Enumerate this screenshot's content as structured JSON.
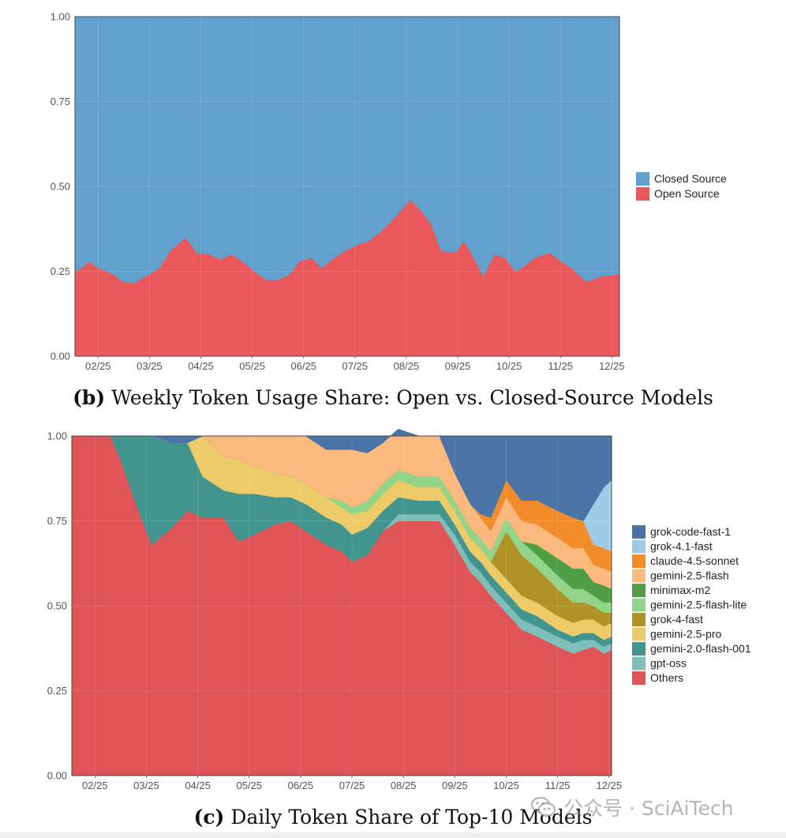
{
  "chart_data": [
    {
      "id": "b",
      "type": "area",
      "stacked": true,
      "title": "Weekly Token Usage Share: Open vs. Closed-Source Models",
      "caption_label": "(b)",
      "xlabel": "",
      "ylabel": "",
      "ylim": [
        0,
        1
      ],
      "y_ticks": [
        "0.00",
        "0.25",
        "0.50",
        "0.75",
        "1.00"
      ],
      "x_ticks": [
        "02/25",
        "03/25",
        "04/25",
        "05/25",
        "06/25",
        "07/25",
        "08/25",
        "09/25",
        "10/25",
        "11/25",
        "12/25"
      ],
      "x_tick_positions": [
        1.5,
        2.5,
        3.5,
        4.5,
        5.5,
        6.5,
        7.5,
        8.5,
        9.5,
        10.5,
        11.5
      ],
      "xlim": [
        1.05,
        11.65
      ],
      "x": [
        1.05,
        1.18,
        1.32,
        1.5,
        1.75,
        1.98,
        2.2,
        2.42,
        2.7,
        2.9,
        3.2,
        3.42,
        3.66,
        3.88,
        4.1,
        4.35,
        4.58,
        4.78,
        5.0,
        5.22,
        5.42,
        5.65,
        5.85,
        6.1,
        6.3,
        6.58,
        6.78,
        7.02,
        7.28,
        7.58,
        7.78,
        7.98,
        8.18,
        8.46,
        8.62,
        8.78,
        9.0,
        9.21,
        9.42,
        9.62,
        9.8,
        10.0,
        10.3,
        10.5,
        10.72,
        11.0,
        11.3,
        11.55,
        11.65
      ],
      "series": [
        {
          "name": "Open Source",
          "color": "#E9585B",
          "values": [
            0.25,
            0.26,
            0.28,
            0.26,
            0.245,
            0.22,
            0.215,
            0.235,
            0.26,
            0.31,
            0.35,
            0.305,
            0.3,
            0.285,
            0.3,
            0.275,
            0.245,
            0.225,
            0.225,
            0.24,
            0.28,
            0.29,
            0.26,
            0.29,
            0.31,
            0.33,
            0.34,
            0.37,
            0.41,
            0.46,
            0.43,
            0.39,
            0.31,
            0.305,
            0.34,
            0.3,
            0.235,
            0.3,
            0.29,
            0.25,
            0.265,
            0.29,
            0.305,
            0.28,
            0.26,
            0.22,
            0.235,
            0.24,
            0.24
          ]
        },
        {
          "name": "Closed Source",
          "color": "#62A1CD",
          "values": "remainder to 1.00"
        }
      ],
      "legend": {
        "position": "right",
        "entries": [
          "Closed Source",
          "Open Source"
        ],
        "colors": [
          "#62A1CD",
          "#E9585B"
        ]
      }
    },
    {
      "id": "c",
      "type": "area",
      "stacked": true,
      "title": "Daily Token Share of Top-10 Models",
      "caption_label": "(c)",
      "xlabel": "",
      "ylabel": "",
      "ylim": [
        0,
        1
      ],
      "y_ticks": [
        "0.00",
        "0.25",
        "0.50",
        "0.75",
        "1.00"
      ],
      "x_ticks": [
        "02/25",
        "03/25",
        "04/25",
        "05/25",
        "06/25",
        "07/25",
        "08/25",
        "09/25",
        "10/25",
        "11/25",
        "12/25"
      ],
      "x_tick_positions": [
        1.5,
        2.5,
        3.5,
        4.5,
        5.5,
        6.5,
        7.5,
        8.5,
        9.5,
        10.5,
        11.5
      ],
      "xlim": [
        1.05,
        11.55
      ],
      "x": [
        1.05,
        1.5,
        1.8,
        2.0,
        2.3,
        2.6,
        3.0,
        3.3,
        3.6,
        4.0,
        4.3,
        4.6,
        5.0,
        5.3,
        5.6,
        6.0,
        6.3,
        6.5,
        6.8,
        7.1,
        7.4,
        7.8,
        8.2,
        8.5,
        8.8,
        9.0,
        9.2,
        9.5,
        9.8,
        10.1,
        10.5,
        10.8,
        11.0,
        11.2,
        11.4,
        11.55
      ],
      "stack_order_bottom_to_top": [
        "Others",
        "gpt-oss",
        "gemini-2.0-flash-001",
        "gemini-2.5-pro",
        "grok-4-fast",
        "gemini-2.5-flash-lite",
        "minimax-m2",
        "gemini-2.5-flash",
        "claude-4.5-sonnet",
        "grok-4.1-fast",
        "grok-code-fast-1"
      ],
      "series": [
        {
          "name": "Others",
          "color": "#E05356",
          "values": [
            1.0,
            1.0,
            1.0,
            0.93,
            0.8,
            0.68,
            0.73,
            0.78,
            0.76,
            0.76,
            0.69,
            0.71,
            0.74,
            0.75,
            0.72,
            0.68,
            0.66,
            0.63,
            0.65,
            0.72,
            0.75,
            0.75,
            0.75,
            0.68,
            0.6,
            0.57,
            0.53,
            0.48,
            0.43,
            0.41,
            0.38,
            0.36,
            0.37,
            0.38,
            0.36,
            0.37
          ]
        },
        {
          "name": "gpt-oss",
          "color": "#7FBFBA",
          "values": [
            0,
            0,
            0,
            0,
            0,
            0,
            0,
            0,
            0,
            0,
            0,
            0,
            0,
            0,
            0,
            0,
            0,
            0,
            0,
            0,
            0.02,
            0.02,
            0.02,
            0.03,
            0.03,
            0.03,
            0.03,
            0.03,
            0.03,
            0.03,
            0.03,
            0.03,
            0.03,
            0.02,
            0.02,
            0.02
          ]
        },
        {
          "name": "gemini-2.0-flash-001",
          "color": "#41958E",
          "values": [
            0,
            0,
            0,
            0.07,
            0.2,
            0.32,
            0.25,
            0.2,
            0.12,
            0.08,
            0.14,
            0.12,
            0.08,
            0.07,
            0.08,
            0.08,
            0.08,
            0.08,
            0.08,
            0.06,
            0.05,
            0.04,
            0.04,
            0.03,
            0.03,
            0.03,
            0.03,
            0.03,
            0.03,
            0.03,
            0.02,
            0.02,
            0.02,
            0.02,
            0.02,
            0.02
          ]
        },
        {
          "name": "gemini-2.5-pro",
          "color": "#EDCB68",
          "values": [
            0,
            0,
            0,
            0,
            0,
            0,
            0,
            0,
            0.12,
            0.1,
            0.1,
            0.08,
            0.07,
            0.06,
            0.06,
            0.06,
            0.05,
            0.06,
            0.05,
            0.05,
            0.05,
            0.04,
            0.04,
            0.04,
            0.04,
            0.04,
            0.04,
            0.04,
            0.04,
            0.04,
            0.04,
            0.04,
            0.04,
            0.04,
            0.04,
            0.04
          ]
        },
        {
          "name": "grok-4-fast",
          "color": "#B09326",
          "values": [
            0,
            0,
            0,
            0,
            0,
            0,
            0,
            0,
            0,
            0,
            0,
            0,
            0,
            0,
            0,
            0,
            0,
            0,
            0,
            0,
            0,
            0,
            0,
            0,
            0,
            0,
            0,
            0.14,
            0.12,
            0.1,
            0.08,
            0.06,
            0.05,
            0.04,
            0.04,
            0.03
          ]
        },
        {
          "name": "gemini-2.5-flash-lite",
          "color": "#92D58A",
          "values": [
            0,
            0,
            0,
            0,
            0,
            0,
            0,
            0,
            0,
            0,
            0,
            0,
            0,
            0,
            0,
            0,
            0.02,
            0.02,
            0.03,
            0.03,
            0.03,
            0.03,
            0.03,
            0.03,
            0.03,
            0.03,
            0.03,
            0.04,
            0.04,
            0.04,
            0.04,
            0.04,
            0.04,
            0.03,
            0.03,
            0.03
          ]
        },
        {
          "name": "minimax-m2",
          "color": "#4F9E46",
          "values": [
            0,
            0,
            0,
            0,
            0,
            0,
            0,
            0,
            0,
            0,
            0,
            0,
            0,
            0,
            0,
            0,
            0,
            0,
            0,
            0,
            0,
            0,
            0,
            0,
            0,
            0,
            0,
            0,
            0,
            0.03,
            0.05,
            0.06,
            0.06,
            0.04,
            0.05,
            0.04
          ]
        },
        {
          "name": "gemini-2.5-flash",
          "color": "#FCB97E",
          "values": [
            0,
            0,
            0,
            0,
            0,
            0,
            0,
            0,
            0,
            0.06,
            0.07,
            0.09,
            0.11,
            0.12,
            0.14,
            0.14,
            0.15,
            0.17,
            0.14,
            0.12,
            0.12,
            0.12,
            0.12,
            0.08,
            0.07,
            0.06,
            0.06,
            0.06,
            0.06,
            0.06,
            0.06,
            0.06,
            0.06,
            0.05,
            0.05,
            0.05
          ]
        },
        {
          "name": "claude-4.5-sonnet",
          "color": "#F28C2A",
          "values": [
            0,
            0,
            0,
            0,
            0,
            0,
            0,
            0,
            0,
            0,
            0,
            0,
            0,
            0,
            0,
            0,
            0,
            0,
            0,
            0,
            0,
            0,
            0,
            0,
            0,
            0.01,
            0.04,
            0.05,
            0.06,
            0.07,
            0.08,
            0.09,
            0.08,
            0.06,
            0.06,
            0.06
          ]
        },
        {
          "name": "grok-4.1-fast",
          "color": "#A0CBE6",
          "values": [
            0,
            0,
            0,
            0,
            0,
            0,
            0,
            0,
            0,
            0,
            0,
            0,
            0,
            0,
            0,
            0,
            0,
            0,
            0,
            0,
            0,
            0,
            0,
            0,
            0,
            0,
            0,
            0,
            0,
            0,
            0,
            0,
            0,
            0.12,
            0.18,
            0.21
          ]
        },
        {
          "name": "grok-code-fast-1",
          "color": "#4A74A5",
          "values": "remainder to 1.00"
        }
      ],
      "legend": {
        "position": "right",
        "entries": [
          "grok-code-fast-1",
          "grok-4.1-fast",
          "claude-4.5-sonnet",
          "gemini-2.5-flash",
          "minimax-m2",
          "gemini-2.5-flash-lite",
          "grok-4-fast",
          "gemini-2.5-pro",
          "gemini-2.0-flash-001",
          "gpt-oss",
          "Others"
        ]
      }
    }
  ],
  "captions": {
    "b_label": "(b)",
    "b_text": "Weekly Token Usage Share: Open vs. Closed-Source Models",
    "c_label": "(c)",
    "c_text": "Daily Token Share of Top-10 Models"
  },
  "watermark": {
    "text": "公众号 · SciAiTech",
    "icon": "wechat-icon"
  }
}
